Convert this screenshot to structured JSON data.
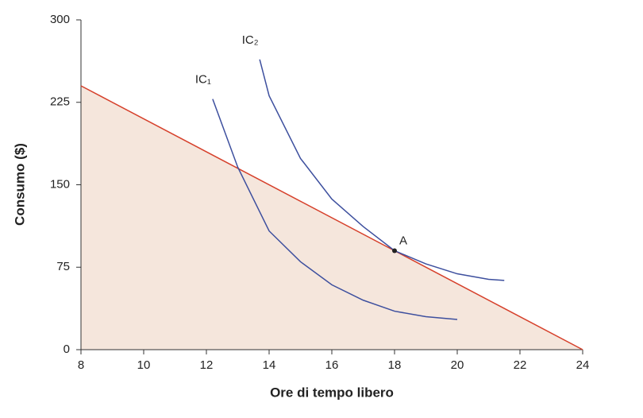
{
  "chart_data": {
    "type": "line",
    "x_label": "Ore di tempo libero",
    "y_label": "Consumo ($)",
    "xlim": [
      8,
      24
    ],
    "xticks": [
      8,
      10,
      12,
      14,
      16,
      18,
      20,
      22,
      24
    ],
    "ylim": [
      0,
      300
    ],
    "yticks": [
      0,
      75,
      150,
      225,
      300
    ],
    "series": [
      {
        "color": "#d6402b",
        "fill": "#f5e6dc",
        "x": [
          8,
          24
        ],
        "values": [
          240,
          0
        ]
      },
      {
        "name": "IC₁",
        "color": "#3d4f9e",
        "x": [
          12.2,
          13,
          14,
          15,
          16,
          17,
          18,
          19,
          20
        ],
        "values": [
          228,
          166,
          108,
          80,
          59,
          45,
          35,
          30,
          27.5
        ]
      },
      {
        "name": "IC₂",
        "color": "#3d4f9e",
        "x": [
          13.7,
          14,
          15,
          16,
          17,
          18,
          19,
          20,
          21,
          21.5
        ],
        "values": [
          264,
          231,
          174,
          137,
          112,
          90,
          78,
          69,
          64,
          63
        ]
      }
    ],
    "annotations": [
      {
        "text": "A",
        "x": 18,
        "y": 90
      }
    ]
  }
}
